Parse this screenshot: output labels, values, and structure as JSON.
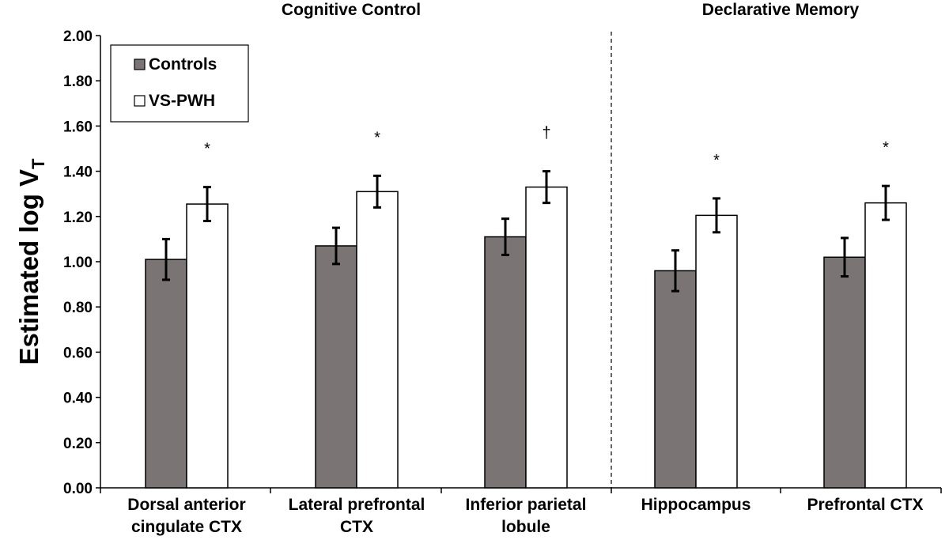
{
  "chart_data": {
    "type": "bar",
    "title": "",
    "ylabel": "Estimated  log V",
    "ylabel_subscript": "T",
    "xlabel": "",
    "ylim": [
      0,
      2.0
    ],
    "yticks": [
      "0.00",
      "0.20",
      "0.40",
      "0.60",
      "0.80",
      "1.00",
      "1.20",
      "1.40",
      "1.60",
      "1.80",
      "2.00"
    ],
    "grid": false,
    "legend_position": "top-left",
    "groups": [
      {
        "label": "Cognitive Control",
        "categories": [
          0,
          1,
          2
        ]
      },
      {
        "label": "Declarative Memory",
        "categories": [
          3,
          4
        ]
      }
    ],
    "categories": [
      [
        "Dorsal anterior",
        "cingulate CTX"
      ],
      [
        "Lateral prefrontal",
        "CTX"
      ],
      [
        "Inferior parietal",
        "lobule"
      ],
      [
        "Hippocampus"
      ],
      [
        "Prefrontal CTX"
      ]
    ],
    "series": [
      {
        "name": "Controls",
        "color": "#7a7574",
        "values": [
          1.01,
          1.07,
          1.11,
          0.96,
          1.02
        ],
        "errors": [
          0.09,
          0.08,
          0.08,
          0.09,
          0.085
        ]
      },
      {
        "name": "VS-PWH",
        "color": "#ffffff",
        "values": [
          1.255,
          1.31,
          1.33,
          1.205,
          1.26
        ],
        "errors": [
          0.075,
          0.07,
          0.07,
          0.075,
          0.075
        ]
      }
    ],
    "annotations": [
      "*",
      "*",
      "†",
      "*",
      "*"
    ]
  }
}
